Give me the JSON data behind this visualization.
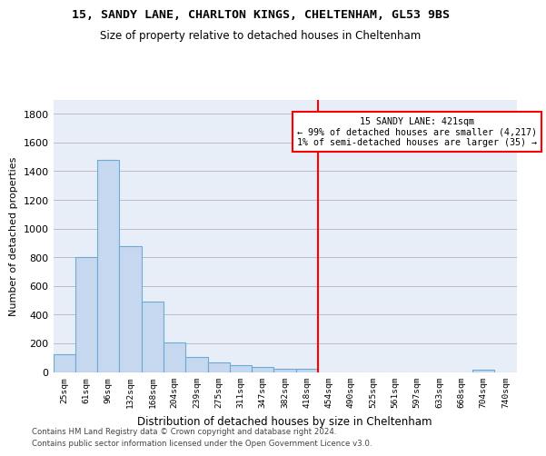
{
  "title1": "15, SANDY LANE, CHARLTON KINGS, CHELTENHAM, GL53 9BS",
  "title2": "Size of property relative to detached houses in Cheltenham",
  "xlabel": "Distribution of detached houses by size in Cheltenham",
  "ylabel": "Number of detached properties",
  "footer1": "Contains HM Land Registry data © Crown copyright and database right 2024.",
  "footer2": "Contains public sector information licensed under the Open Government Licence v3.0.",
  "bin_labels": [
    "25sqm",
    "61sqm",
    "96sqm",
    "132sqm",
    "168sqm",
    "204sqm",
    "239sqm",
    "275sqm",
    "311sqm",
    "347sqm",
    "382sqm",
    "418sqm",
    "454sqm",
    "490sqm",
    "525sqm",
    "561sqm",
    "597sqm",
    "633sqm",
    "668sqm",
    "704sqm",
    "740sqm"
  ],
  "bar_values": [
    125,
    800,
    1480,
    880,
    490,
    205,
    105,
    65,
    45,
    35,
    25,
    20,
    0,
    0,
    0,
    0,
    0,
    0,
    0,
    15,
    0
  ],
  "bar_color": "#c5d8f0",
  "bar_edgecolor": "#6aaad4",
  "vline_color": "red",
  "annotation_title": "15 SANDY LANE: 421sqm",
  "annotation_line1": "← 99% of detached houses are smaller (4,217)",
  "annotation_line2": "1% of semi-detached houses are larger (35) →",
  "background_color": "#e8eef8",
  "ylim": [
    0,
    1900
  ],
  "yticks": [
    0,
    200,
    400,
    600,
    800,
    1000,
    1200,
    1400,
    1600,
    1800
  ],
  "grid_color": "#bbbbcc",
  "vline_index": 11.5
}
